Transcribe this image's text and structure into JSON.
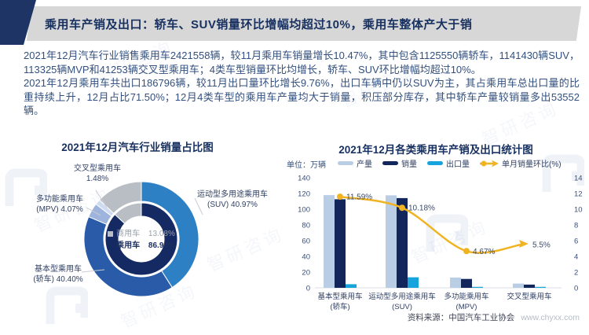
{
  "header": {
    "title": "乘用车产销及出口：轿车、SUV销量环比增幅均超过10%，乘用车整体产大于销"
  },
  "body": {
    "paragraph1": "2021年12月汽车行业销售乘用车2421558辆，较11月乘用车销量增长10.47%，其中包含1125550辆轿车，1141430辆SUV，113325辆MVP和41253辆交叉型乘用车；4类车型销量环比均增长，轿车、SUV环比增幅均超过10%。",
    "paragraph2": "2021年12月乘用车共出口186796辆，较11月出口量环比增长9.76%，出口车辆中仍以SUV为主，其占乘用车总出口量的比重持续上升，12月占比71.50%；12月4类车型的乘用车产量均大于销量，积压部分库存，其中轿车产量较销量多出53552辆。"
  },
  "watermark": {
    "text": "智研咨询"
  },
  "source": {
    "label": "资料来源：中国汽车工业协会",
    "site": "www.chyxx.com"
  },
  "chart_data": [
    {
      "type": "pie",
      "style": "double-ring-donut",
      "title": "2021年12月汽车行业销量占比图",
      "inner_ring": {
        "slices": [
          {
            "label": "乘用车",
            "value": 86.92,
            "color": "#152a63"
          },
          {
            "label": "商用车",
            "value": 13.08,
            "color": "#b9bec4"
          }
        ]
      },
      "outer_ring": {
        "slices": [
          {
            "label": "运动型多用途乘用车 (SUV)",
            "value": 40.97,
            "color": "#2e80c4"
          },
          {
            "label": "基本型乘用车 (轿车)",
            "value": 40.4,
            "color": "#2a5ba8"
          },
          {
            "label": "多功能乘用车 (MPV)",
            "value": 4.07,
            "color": "#9fb4dc"
          },
          {
            "label": "交叉型乘用车",
            "value": 1.48,
            "color": "#cfdcf0"
          },
          {
            "label": "商用车",
            "value": 13.08,
            "color": "#b9bec4"
          }
        ]
      },
      "center_legend": [
        {
          "label": "商用车",
          "value": "13.08%"
        },
        {
          "label": "乘用车",
          "value": "86.92%"
        }
      ],
      "callouts": [
        {
          "line1": "交叉型乘用车",
          "line2": "1.48%"
        },
        {
          "line1": "多功能乘用车",
          "line2": "(MPV) 4.07%"
        },
        {
          "line1": "运动型多用途乘用车",
          "line2": "(SUV) 40.97%"
        },
        {
          "line1": "基本型乘用车",
          "line2": "(轿车) 40.40%"
        }
      ]
    },
    {
      "type": "bar",
      "subtype": "grouped-bar-with-line",
      "title": "2021年12月各类乘用车产销及出口统计图",
      "unit_label": "单位：万辆",
      "categories": [
        [
          "基本型乘用车",
          "(轿车)"
        ],
        [
          "运动型多用途乘用车",
          "(SUV)"
        ],
        [
          "多功能乘用车",
          "(MPV)"
        ],
        [
          "交叉型乘用车",
          ""
        ]
      ],
      "series": [
        {
          "name": "产量",
          "type": "bar",
          "color": "#b9cde5",
          "values": [
            117.9,
            117.6,
            13.1,
            5.4
          ]
        },
        {
          "name": "销量",
          "type": "bar",
          "color": "#12265c",
          "values": [
            112.6,
            114.1,
            11.3,
            4.1
          ]
        },
        {
          "name": "出口量",
          "type": "bar",
          "color": "#17a4dd",
          "values": [
            4.6,
            13.4,
            0.6,
            0.3
          ]
        },
        {
          "name": "单月销量环比(%)",
          "type": "line",
          "color": "#f0b322",
          "values": [
            11.59,
            10.18,
            4.67,
            5.5
          ],
          "labels": [
            "11.59%",
            "10.18%",
            "4.67%",
            "5.5%"
          ]
        }
      ],
      "left_axis": {
        "ticks": [
          0,
          20,
          40,
          60,
          80,
          100,
          120,
          140
        ],
        "max": 140
      },
      "right_axis": {
        "ticks": [
          0,
          2,
          4,
          6,
          8,
          10,
          12,
          14
        ],
        "max": 14
      },
      "legend_position": "top",
      "grid": false
    }
  ]
}
